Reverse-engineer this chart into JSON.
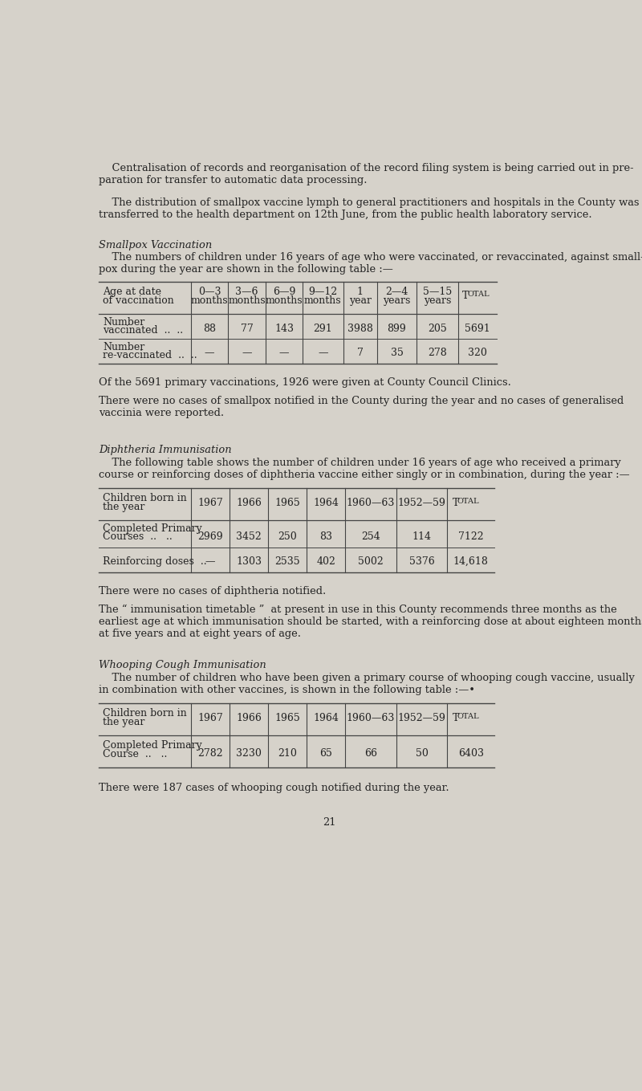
{
  "bg_color": "#d6d2ca",
  "text_color": "#222222",
  "page_number": "21",
  "para1_indent": "    Centralisation of records and reorganisation of the record filing system is being carried out in pre-\nparation for transfer to automatic data processing.",
  "para2_indent": "    The distribution of smallpox vaccine lymph to general practitioners and hospitals in the County was\ntransferred to the health department on 12th June, from the public health laboratory service.",
  "section1_title": "Smallpox Vaccination",
  "section1_intro": "    The numbers of children under 16 years of age who were vaccinated, or revaccinated, against small-\npox during the year are shown in the following table :—",
  "table1_headers_row1": [
    "Age at date",
    "0—3",
    "3—6",
    "6—9",
    "9—12",
    "1",
    "2—4",
    "5—15",
    "T"
  ],
  "table1_headers_row2": [
    "of vaccination",
    "months",
    "months",
    "months",
    "months",
    "year",
    "years",
    "years",
    "OTAL"
  ],
  "table1_row1_label1": "Number",
  "table1_row1_label2": "vaccinated  ..  ..",
  "table1_row1_data": [
    "88",
    "77",
    "143",
    "291",
    "3988",
    "899",
    "205",
    "5691"
  ],
  "table1_row2_label1": "Number",
  "table1_row2_label2": "re-vaccinated  ..  ..",
  "table1_row2_data": [
    "—",
    "—",
    "—",
    "—",
    "7",
    "35",
    "278",
    "320"
  ],
  "para3": "Of the 5691 primary vaccinations, 1926 were given at County Council Clinics.",
  "para4": "There were no cases of smallpox notified in the County during the year and no cases of generalised\nvaccinia were reported.",
  "section2_title": "Diphtheria Immunisation",
  "section2_intro": "    The following table shows the number of children under 16 years of age who received a primary\ncourse or reinforcing doses of diphtheria vaccine either singly or in combination, during the year :—",
  "table2_h1": [
    "Children born in",
    "1967",
    "1966",
    "1965",
    "1964",
    "1960—63",
    "1952—59",
    "T"
  ],
  "table2_h2": [
    "the year",
    "",
    "",
    "",
    "",
    "",
    "",
    "OTAL"
  ],
  "table2_row1_label1": "Completed Primary",
  "table2_row1_label2": "Courses  ..   ..",
  "table2_row1_data": [
    "2969",
    "3452",
    "250",
    "83",
    "254",
    "114",
    "7122"
  ],
  "table2_row2_label": "Reinforcing doses  ..",
  "table2_row2_data": [
    "—",
    "1303",
    "2535",
    "402",
    "5002",
    "5376",
    "14,618"
  ],
  "para5": "There were no cases of diphtheria notified.",
  "para6": "The “ immunisation timetable ”  at present in use in this County recommends three months as the\nearliest age at which immunisation should be started, with a reinforcing dose at about eighteen months,\nat five years and at eight years of age.",
  "section3_title": "Whooping Cough Immunisation",
  "section3_intro": "    The number of children who have been given a primary course of whooping cough vaccine, usually\nin combination with other vaccines, is shown in the following table :—•",
  "table3_h1": [
    "Children born in",
    "1967",
    "1966",
    "1965",
    "1964",
    "1960—63",
    "1952—59",
    "T"
  ],
  "table3_h2": [
    "the year",
    "",
    "",
    "",
    "",
    "",
    "",
    "OTAL"
  ],
  "table3_row1_label1": "Completed Primary",
  "table3_row1_label2": "Course  ..   ..",
  "table3_row1_data": [
    "2782",
    "3230",
    "210",
    "65",
    "66",
    "50",
    "6403"
  ],
  "para7": "There were 187 cases of whooping cough notified during the year."
}
